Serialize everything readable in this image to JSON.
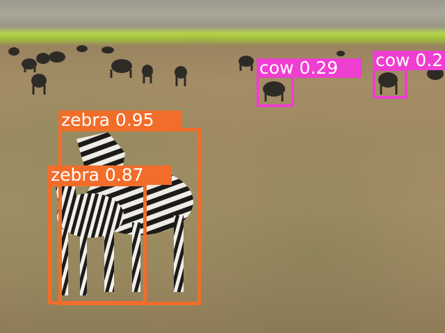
{
  "colors": {
    "zebra_box": "#f26d2a",
    "cow_box": "#ee3fd0"
  },
  "detections": [
    {
      "name": "zebra",
      "label": "zebra 0.95"
    },
    {
      "name": "zebra",
      "label": "zebra 0.87"
    },
    {
      "name": "cow",
      "label": "cow 0.29"
    },
    {
      "name": "cow",
      "label": "cow 0.2"
    }
  ]
}
